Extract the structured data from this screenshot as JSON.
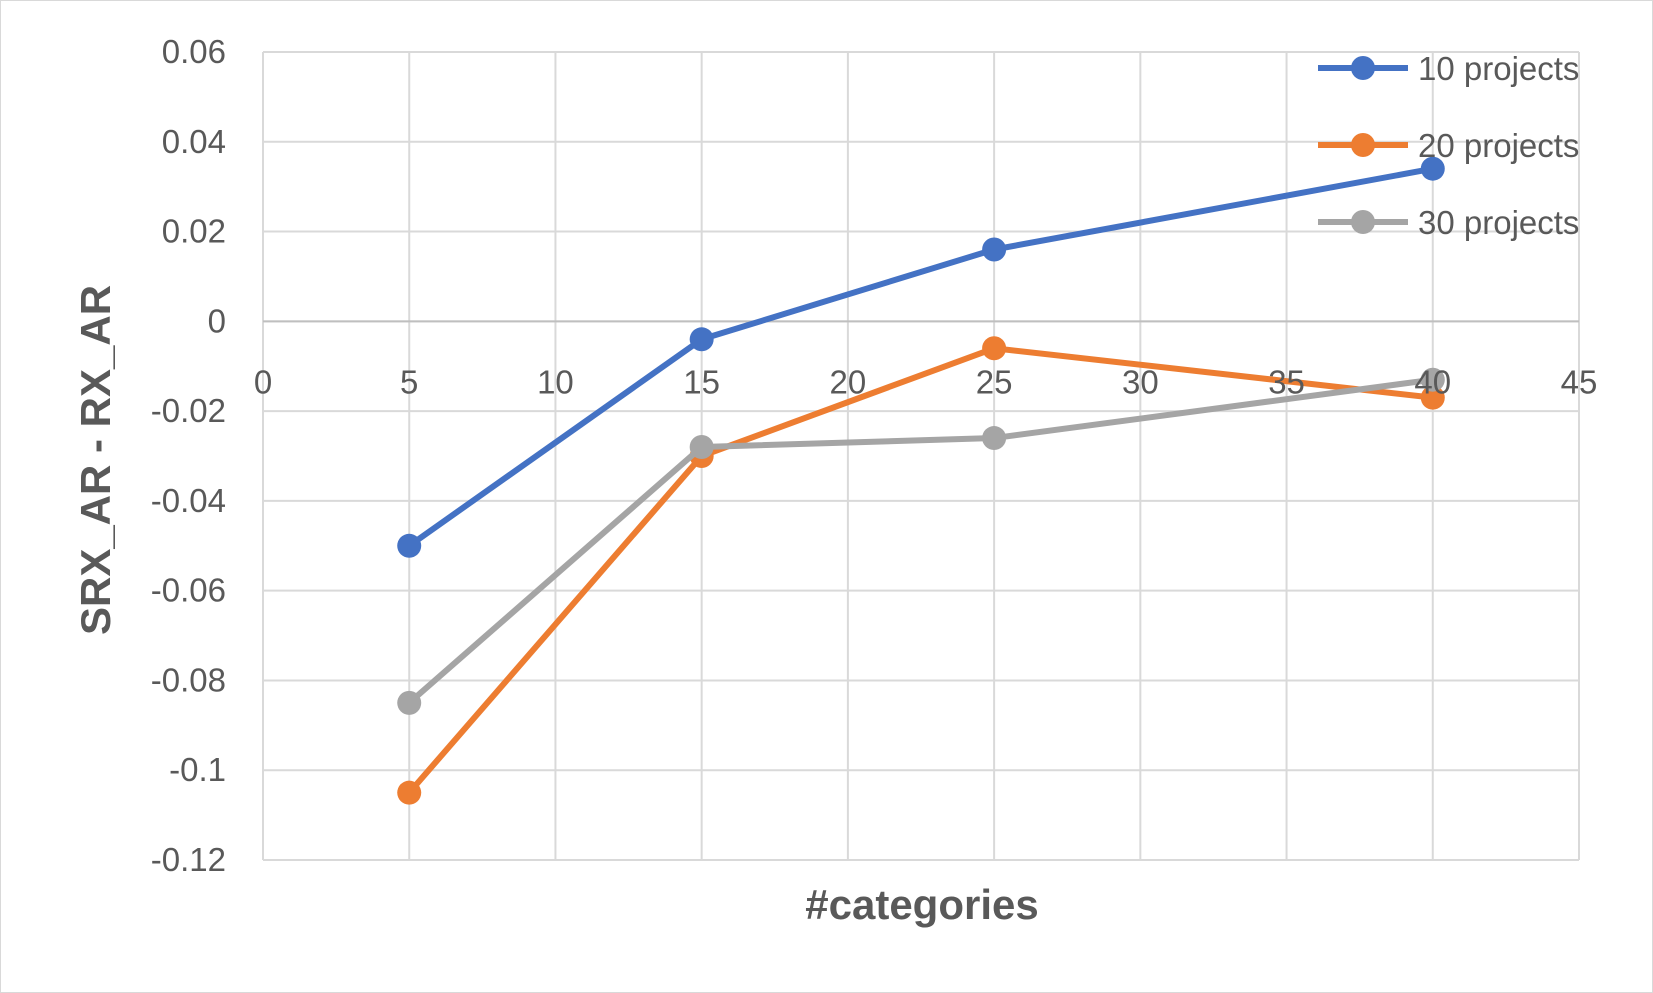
{
  "chart_data": {
    "type": "scatter",
    "xlabel": "#categories",
    "ylabel": "SRX_AR - RX_AR",
    "xlim": [
      0,
      45
    ],
    "ylim": [
      -0.12,
      0.06
    ],
    "x_ticks": [
      "0",
      "5",
      "10",
      "15",
      "20",
      "25",
      "30",
      "35",
      "40",
      "45"
    ],
    "y_ticks": [
      "0.06",
      "0.04",
      "0.02",
      "0",
      "-0.02",
      "-0.04",
      "-0.06",
      "-0.08",
      "-0.1",
      "-0.12"
    ],
    "grid": true,
    "legend_position": "top-right",
    "x": [
      5,
      15,
      25,
      40
    ],
    "series": [
      {
        "name": "10 projects",
        "color": "#4472c4",
        "values": [
          -0.05,
          -0.004,
          0.016,
          0.034
        ]
      },
      {
        "name": "20 projects",
        "color": "#ed7d31",
        "values": [
          -0.105,
          -0.03,
          -0.006,
          -0.017
        ]
      },
      {
        "name": "30 projects",
        "color": "#a5a5a5",
        "values": [
          -0.085,
          -0.028,
          -0.026,
          -0.013
        ]
      }
    ]
  }
}
